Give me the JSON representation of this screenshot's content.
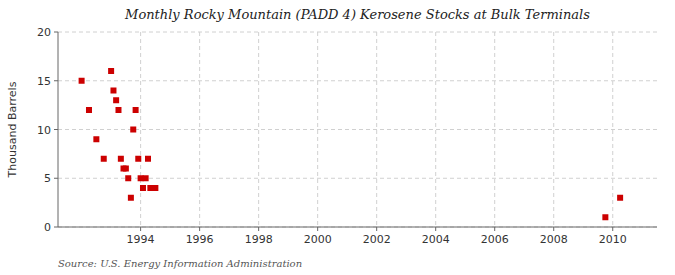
{
  "chart_data": {
    "type": "scatter",
    "title": "Monthly Rocky Mountain (PADD 4) Kerosene Stocks at Bulk Terminals",
    "ylabel": "Thousand Barrels",
    "annotations": [
      "Source: U.S. Energy Information Administration"
    ],
    "x": [
      1992.0,
      1992.25,
      1992.5,
      1992.75,
      1993.0,
      1993.08,
      1993.17,
      1993.25,
      1993.33,
      1993.42,
      1993.5,
      1993.58,
      1993.67,
      1993.75,
      1993.83,
      1993.92,
      1994.0,
      1994.08,
      1994.17,
      1994.25,
      1994.33,
      1994.5,
      2009.75,
      2010.25
    ],
    "values": [
      15,
      12,
      9,
      7,
      16,
      14,
      13,
      12,
      7,
      6,
      6,
      5,
      3,
      10,
      12,
      7,
      5,
      4,
      5,
      7,
      4,
      4,
      1,
      3
    ],
    "color": "#cc0000",
    "marker": "square",
    "xlim": [
      1991.2,
      2011.5
    ],
    "ylim": [
      0,
      20
    ],
    "xticks": [
      1994,
      1996,
      1998,
      2000,
      2002,
      2004,
      2006,
      2008,
      2010
    ],
    "yticks": [
      0,
      5,
      10,
      15,
      20
    ],
    "grid": true
  }
}
